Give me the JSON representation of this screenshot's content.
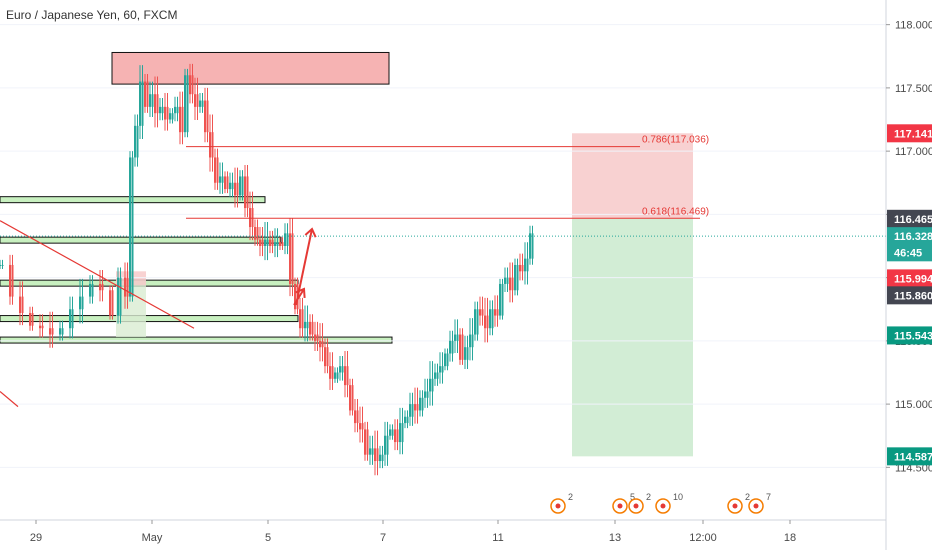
{
  "chart_data": {
    "type": "candlestick",
    "title": "Euro / Japanese Yen, 60, FXCM",
    "ylim": [
      114.4,
      118.1
    ],
    "y_ticks": [
      "118.000",
      "117.500",
      "117.000",
      "116.500",
      "116.000",
      "115.500",
      "115.000",
      "114.500"
    ],
    "x_ticks": [
      "29",
      "May",
      "5",
      "7",
      "11",
      "13",
      "12:00",
      "18"
    ],
    "price_badges": [
      {
        "label": "117.141",
        "value": 117.141,
        "color": "#f23645"
      },
      {
        "label": "116.465",
        "value": 116.465,
        "color": "#434651"
      },
      {
        "label": "116.328",
        "value": 116.328,
        "color": "#26a69a"
      },
      {
        "label": "46:45",
        "value": 116.2,
        "color": "#26a69a"
      },
      {
        "label": "115.994",
        "value": 115.994,
        "color": "#f23645"
      },
      {
        "label": "115.860",
        "value": 115.86,
        "color": "#434651"
      },
      {
        "label": "115.543",
        "value": 115.543,
        "color": "#089981"
      },
      {
        "label": "114.587",
        "value": 114.587,
        "color": "#089981"
      }
    ],
    "fib_levels": [
      {
        "label": "0.786(117.036)",
        "value": 117.036
      },
      {
        "label": "0.618(116.469)",
        "value": 116.469
      }
    ],
    "position_tool": {
      "entry": 116.465,
      "stop": 117.141,
      "target": 114.587
    },
    "zones_supply": [
      {
        "top": 117.78,
        "bottom": 117.53
      }
    ],
    "zones_support": [
      {
        "top": 116.64,
        "bottom": 116.6
      },
      {
        "top": 116.32,
        "bottom": 116.28
      },
      {
        "top": 115.98,
        "bottom": 115.94
      },
      {
        "top": 115.7,
        "bottom": 115.66
      },
      {
        "top": 115.53,
        "bottom": 115.49
      }
    ],
    "current_price": 116.328,
    "colors": {
      "up": "#26a69a",
      "down": "#ef5350",
      "fib": "#e53935",
      "stop_zone": "#f7c9c9",
      "target_zone": "#cdebd0"
    },
    "event_markers": [
      {
        "count": "2"
      },
      {
        "count": "5"
      },
      {
        "count": "2"
      },
      {
        "count": "10"
      },
      {
        "count": "2"
      },
      {
        "count": "7"
      }
    ],
    "close_path": [
      [
        0,
        116.1
      ],
      [
        10,
        115.85
      ],
      [
        20,
        115.72
      ],
      [
        30,
        115.62
      ],
      [
        40,
        115.6
      ],
      [
        50,
        115.55
      ],
      [
        60,
        115.6
      ],
      [
        70,
        115.75
      ],
      [
        80,
        115.85
      ],
      [
        90,
        115.95
      ],
      [
        100,
        115.9
      ],
      [
        110,
        115.7
      ],
      [
        118,
        116.0
      ],
      [
        125,
        115.85
      ],
      [
        130,
        116.95
      ],
      [
        135,
        117.2
      ],
      [
        140,
        117.55
      ],
      [
        145,
        117.35
      ],
      [
        150,
        117.45
      ],
      [
        155,
        117.3
      ],
      [
        160,
        117.35
      ],
      [
        165,
        117.25
      ],
      [
        170,
        117.3
      ],
      [
        175,
        117.35
      ],
      [
        180,
        117.15
      ],
      [
        185,
        117.6
      ],
      [
        190,
        117.45
      ],
      [
        195,
        117.35
      ],
      [
        200,
        117.4
      ],
      [
        205,
        117.15
      ],
      [
        210,
        116.95
      ],
      [
        215,
        116.75
      ],
      [
        220,
        116.8
      ],
      [
        225,
        116.7
      ],
      [
        230,
        116.75
      ],
      [
        235,
        116.65
      ],
      [
        240,
        116.8
      ],
      [
        245,
        116.55
      ],
      [
        250,
        116.4
      ],
      [
        255,
        116.3
      ],
      [
        260,
        116.25
      ],
      [
        265,
        116.3
      ],
      [
        270,
        116.25
      ],
      [
        275,
        116.28
      ],
      [
        280,
        116.25
      ],
      [
        285,
        116.35
      ],
      [
        290,
        115.95
      ],
      [
        295,
        115.75
      ],
      [
        300,
        115.6
      ],
      [
        305,
        115.65
      ],
      [
        310,
        115.55
      ],
      [
        315,
        115.5
      ],
      [
        320,
        115.45
      ],
      [
        325,
        115.3
      ],
      [
        330,
        115.2
      ],
      [
        335,
        115.25
      ],
      [
        340,
        115.3
      ],
      [
        345,
        115.15
      ],
      [
        350,
        114.95
      ],
      [
        355,
        114.85
      ],
      [
        360,
        114.8
      ],
      [
        365,
        114.6
      ],
      [
        370,
        114.65
      ],
      [
        375,
        114.55
      ],
      [
        380,
        114.6
      ],
      [
        385,
        114.75
      ],
      [
        390,
        114.8
      ],
      [
        395,
        114.7
      ],
      [
        400,
        114.85
      ],
      [
        405,
        114.9
      ],
      [
        410,
        115.0
      ],
      [
        415,
        114.95
      ],
      [
        420,
        115.05
      ],
      [
        425,
        115.1
      ],
      [
        430,
        115.2
      ],
      [
        435,
        115.25
      ],
      [
        440,
        115.3
      ],
      [
        445,
        115.4
      ],
      [
        450,
        115.5
      ],
      [
        455,
        115.55
      ],
      [
        460,
        115.35
      ],
      [
        465,
        115.45
      ],
      [
        470,
        115.55
      ],
      [
        475,
        115.75
      ],
      [
        480,
        115.7
      ],
      [
        485,
        115.6
      ],
      [
        490,
        115.75
      ],
      [
        495,
        115.7
      ],
      [
        500,
        115.95
      ],
      [
        505,
        116.0
      ],
      [
        510,
        115.9
      ],
      [
        515,
        116.1
      ],
      [
        520,
        116.05
      ],
      [
        525,
        116.15
      ],
      [
        530,
        116.35
      ]
    ]
  }
}
